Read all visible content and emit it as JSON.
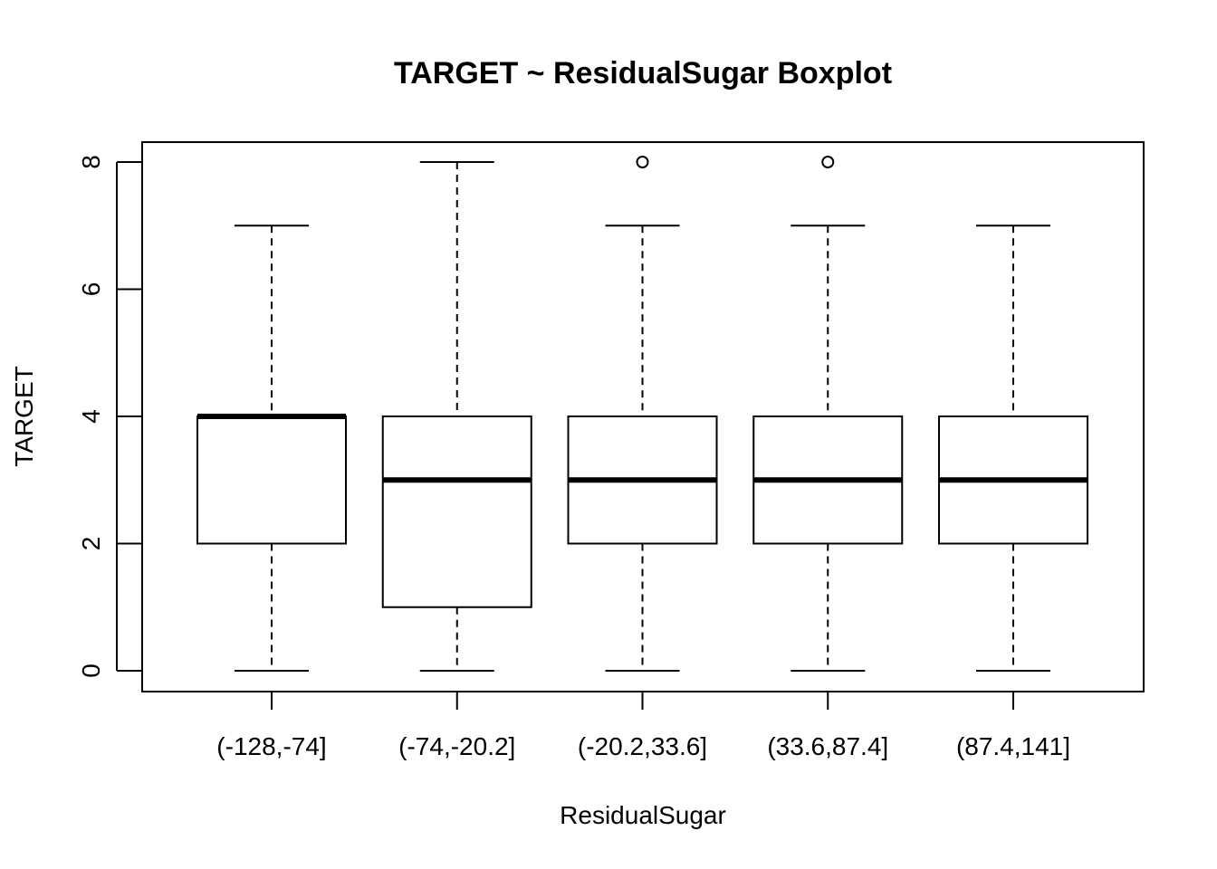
{
  "chart_data": {
    "type": "boxplot",
    "title": "TARGET ~ ResidualSugar Boxplot",
    "xlabel": "ResidualSugar",
    "ylabel": "TARGET",
    "ylim": [
      -0.3,
      8.3
    ],
    "yticks": [
      0,
      2,
      4,
      6,
      8
    ],
    "ytick_labels": [
      "0",
      "2",
      "4",
      "6",
      "8"
    ],
    "categories": [
      "(-128,-74]",
      "(-74,-20.2]",
      "(-20.2,33.6]",
      "(33.6,87.4]",
      "(87.4,141]"
    ],
    "boxes": [
      {
        "category": "(-128,-74]",
        "whisker_low": 0,
        "q1": 2,
        "median": 4,
        "q3": 4,
        "whisker_high": 7,
        "outliers": []
      },
      {
        "category": "(-74,-20.2]",
        "whisker_low": 0,
        "q1": 1,
        "median": 3,
        "q3": 4,
        "whisker_high": 8,
        "outliers": []
      },
      {
        "category": "(-20.2,33.6]",
        "whisker_low": 0,
        "q1": 2,
        "median": 3,
        "q3": 4,
        "whisker_high": 7,
        "outliers": [
          8
        ]
      },
      {
        "category": "(33.6,87.4]",
        "whisker_low": 0,
        "q1": 2,
        "median": 3,
        "q3": 4,
        "whisker_high": 7,
        "outliers": [
          8
        ]
      },
      {
        "category": "(87.4,141]",
        "whisker_low": 0,
        "q1": 2,
        "median": 3,
        "q3": 4,
        "whisker_high": 7,
        "outliers": []
      }
    ],
    "colors": {
      "box_fill": "#ffffff",
      "stroke": "#000000"
    },
    "grid": false,
    "legend": "none"
  }
}
